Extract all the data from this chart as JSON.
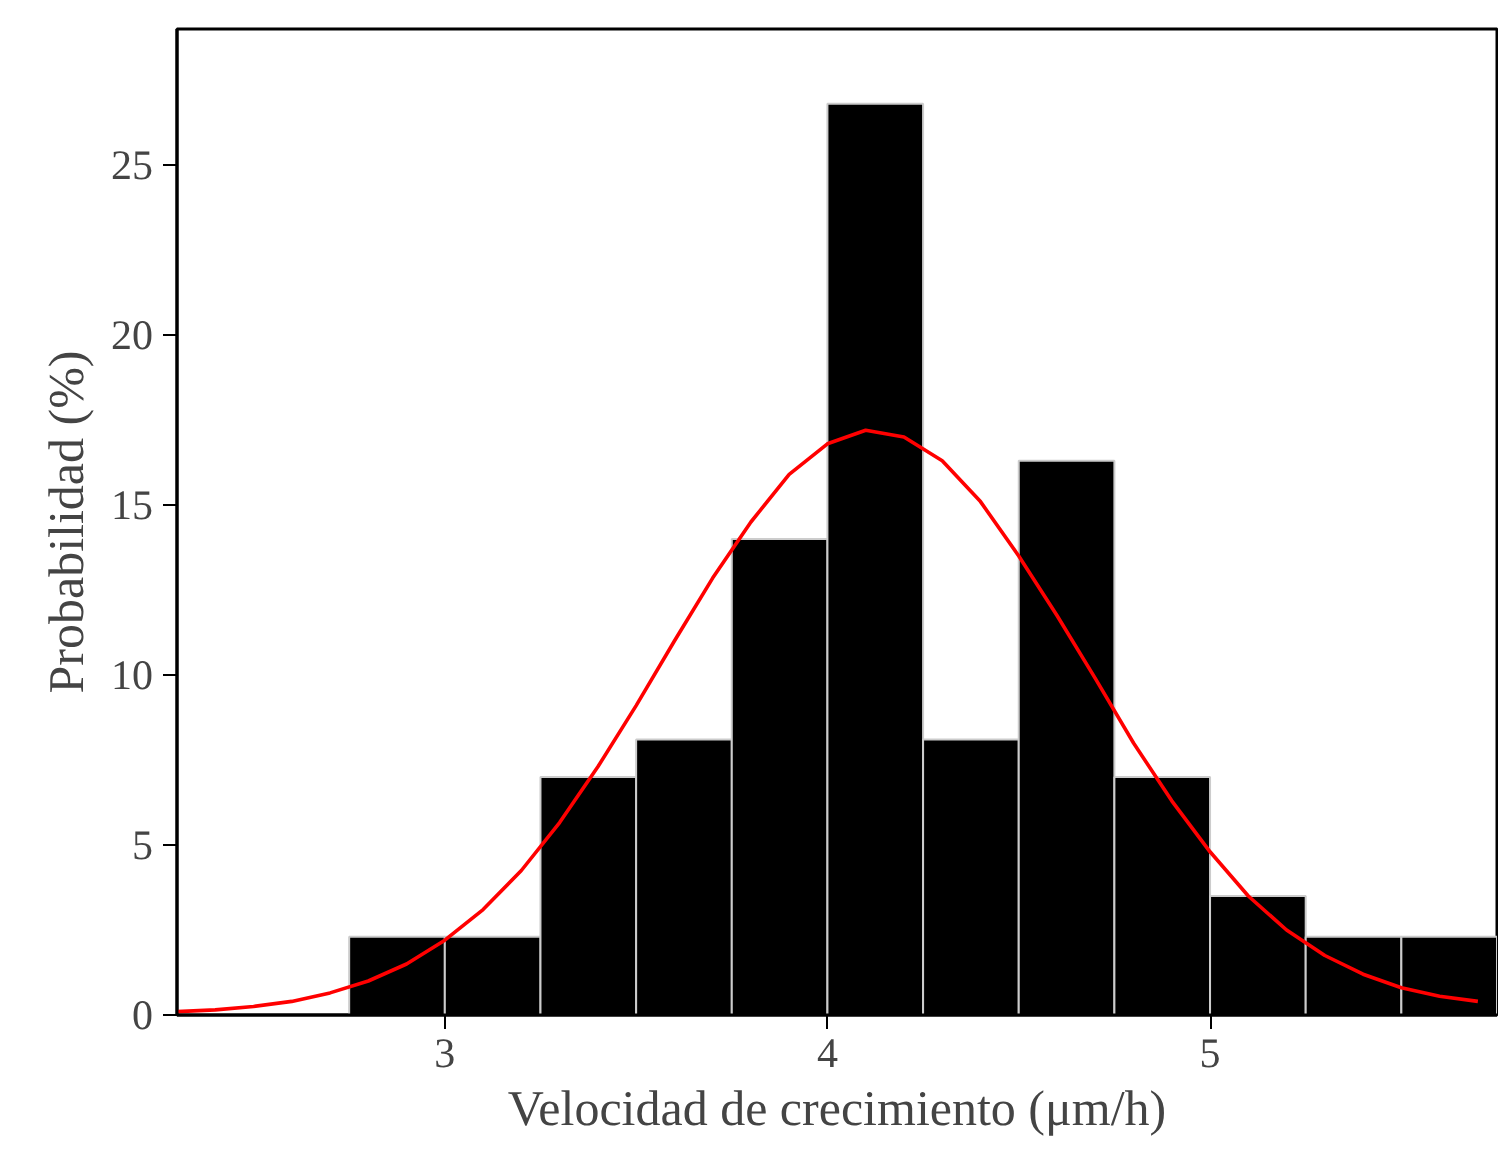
{
  "chart_data": {
    "type": "histogram",
    "xlabel": "Velocidad de crecimiento (μm/h)",
    "ylabel": "Probabilidad (%)",
    "bins": [
      2.75,
      3.0,
      3.25,
      3.5,
      3.75,
      4.0,
      4.25,
      4.5,
      4.75,
      5.0,
      5.25,
      5.5,
      5.75
    ],
    "values": [
      2.3,
      2.3,
      7.0,
      8.1,
      14.0,
      26.8,
      8.1,
      16.3,
      7.0,
      3.5,
      2.3,
      2.3
    ],
    "color": "#000000",
    "series": [
      {
        "type": "line",
        "color": "#ff0000",
        "x": [
          2.3,
          2.4,
          2.5,
          2.6,
          2.7,
          2.8,
          2.9,
          3.0,
          3.1,
          3.2,
          3.3,
          3.4,
          3.5,
          3.6,
          3.7,
          3.8,
          3.9,
          4.0,
          4.1,
          4.2,
          4.3,
          4.4,
          4.5,
          4.6,
          4.7,
          4.8,
          4.9,
          5.0,
          5.1,
          5.2,
          5.3,
          5.4,
          5.5,
          5.6,
          5.7
        ],
        "values": [
          0.1,
          0.15,
          0.25,
          0.4,
          0.65,
          1.0,
          1.5,
          2.2,
          3.1,
          4.25,
          5.66,
          7.3,
          9.1,
          11.0,
          12.85,
          14.5,
          15.9,
          16.8,
          17.2,
          17.0,
          16.3,
          15.1,
          13.5,
          11.75,
          9.9,
          8.0,
          6.3,
          4.8,
          3.5,
          2.5,
          1.75,
          1.2,
          0.8,
          0.55,
          0.4
        ]
      }
    ],
    "xlim": [
      2.3,
      5.75
    ],
    "ylim": [
      0,
      29
    ],
    "xticks": [
      3,
      4,
      5
    ],
    "yticks": [
      0,
      5,
      10,
      15,
      20,
      25
    ],
    "grid": false
  }
}
